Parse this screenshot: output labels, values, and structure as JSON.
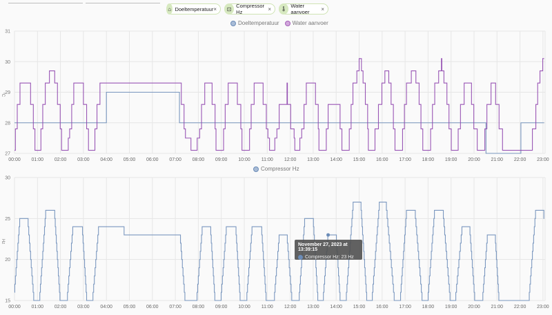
{
  "chips": [
    {
      "label": "Doeltemperatuur",
      "icon": "home-thermometer-icon",
      "glyph": "⌂"
    },
    {
      "label": "Compressor Hz",
      "icon": "compressor-icon",
      "glyph": "⊡"
    },
    {
      "label": "Water aanvoer",
      "icon": "thermometer-water-icon",
      "glyph": "🌡"
    }
  ],
  "chip_close": "×",
  "colors": {
    "doel": "#6b8cb8",
    "water": "#8e44ad",
    "compressor": "#6b8cb8",
    "chip_bg": "#d7e9c0",
    "grid": "#e4e4e4"
  },
  "tooltip": {
    "title": "November 27, 2023 at 13:39:15",
    "row": "Compressor Hz: 23 Hz"
  },
  "chart_data": [
    {
      "type": "line",
      "ylabel": "°C",
      "ylim": [
        27,
        31
      ],
      "yticks": [
        "27",
        "28",
        "29",
        "30",
        "31"
      ],
      "xlim_hours": [
        0,
        23.05
      ],
      "xticks": [
        "00:00",
        "01:00",
        "02:00",
        "03:00",
        "04:00",
        "05:00",
        "06:00",
        "07:00",
        "08:00",
        "09:00",
        "10:00",
        "11:00",
        "12:00",
        "13:00",
        "14:00",
        "15:00",
        "16:00",
        "17:00",
        "18:00",
        "19:00",
        "20:00",
        "21:00",
        "22:00",
        "23:00"
      ],
      "grid": true,
      "legend": "top-center",
      "series": [
        {
          "name": "Doeltemperatuur",
          "color": "#6b8cb8",
          "step": true,
          "points": [
            [
              0,
              28
            ],
            [
              4.0,
              29
            ],
            [
              7.18,
              28
            ],
            [
              20.52,
              27
            ],
            [
              22.04,
              28
            ],
            [
              23.05,
              28
            ]
          ]
        },
        {
          "name": "Water aanvoer",
          "color": "#8e44ad",
          "step": true,
          "points": [
            [
              0,
              27.1
            ],
            [
              0.04,
              27.8
            ],
            [
              0.12,
              28.6
            ],
            [
              0.24,
              29.3
            ],
            [
              0.7,
              28.6
            ],
            [
              0.82,
              27.8
            ],
            [
              0.89,
              27.1
            ],
            [
              1.15,
              27.8
            ],
            [
              1.23,
              28.6
            ],
            [
              1.34,
              29.3
            ],
            [
              1.52,
              29.7
            ],
            [
              1.75,
              29.3
            ],
            [
              1.87,
              28.6
            ],
            [
              1.99,
              27.8
            ],
            [
              2.05,
              27.1
            ],
            [
              2.34,
              27.5
            ],
            [
              2.4,
              27.8
            ],
            [
              2.49,
              28.6
            ],
            [
              2.58,
              29.3
            ],
            [
              3.0,
              28.6
            ],
            [
              3.14,
              27.8
            ],
            [
              3.22,
              27.1
            ],
            [
              3.5,
              27.8
            ],
            [
              3.59,
              28.6
            ],
            [
              3.72,
              29.3
            ],
            [
              7.26,
              28.6
            ],
            [
              7.38,
              27.8
            ],
            [
              7.44,
              27.5
            ],
            [
              7.68,
              27.1
            ],
            [
              7.95,
              27.5
            ],
            [
              8.06,
              27.8
            ],
            [
              8.14,
              28.6
            ],
            [
              8.28,
              29.3
            ],
            [
              8.6,
              28.6
            ],
            [
              8.73,
              27.8
            ],
            [
              8.77,
              27.1
            ],
            [
              9.1,
              27.8
            ],
            [
              9.17,
              28.6
            ],
            [
              9.3,
              29.3
            ],
            [
              9.7,
              28.6
            ],
            [
              9.85,
              27.8
            ],
            [
              9.9,
              27.1
            ],
            [
              10.23,
              27.8
            ],
            [
              10.3,
              28.6
            ],
            [
              10.43,
              29.3
            ],
            [
              10.82,
              28.6
            ],
            [
              10.96,
              27.8
            ],
            [
              11.03,
              27.5
            ],
            [
              11.1,
              27.1
            ],
            [
              11.33,
              27.5
            ],
            [
              11.42,
              27.8
            ],
            [
              11.52,
              28.6
            ],
            [
              11.86,
              29.3
            ],
            [
              11.88,
              28.6
            ],
            [
              12.02,
              27.8
            ],
            [
              12.17,
              27.5
            ],
            [
              12.2,
              27.1
            ],
            [
              12.42,
              27.5
            ],
            [
              12.5,
              27.8
            ],
            [
              12.6,
              28.6
            ],
            [
              12.7,
              29.3
            ],
            [
              13.1,
              28.6
            ],
            [
              13.22,
              27.8
            ],
            [
              13.25,
              27.1
            ],
            [
              13.57,
              27.8
            ],
            [
              13.65,
              28.6
            ],
            [
              14.17,
              27.8
            ],
            [
              14.25,
              27.1
            ],
            [
              14.57,
              27.8
            ],
            [
              14.65,
              28.6
            ],
            [
              14.73,
              29.3
            ],
            [
              14.9,
              29.7
            ],
            [
              15.0,
              30.1
            ],
            [
              15.1,
              29.7
            ],
            [
              15.17,
              29.3
            ],
            [
              15.27,
              28.6
            ],
            [
              15.37,
              27.8
            ],
            [
              15.4,
              27.1
            ],
            [
              15.69,
              27.8
            ],
            [
              15.84,
              28.6
            ],
            [
              15.99,
              29.3
            ],
            [
              16.12,
              29.7
            ],
            [
              16.29,
              29.3
            ],
            [
              16.39,
              28.6
            ],
            [
              16.49,
              27.8
            ],
            [
              16.56,
              27.1
            ],
            [
              16.89,
              27.8
            ],
            [
              16.97,
              28.6
            ],
            [
              17.06,
              29.3
            ],
            [
              17.27,
              29.7
            ],
            [
              17.47,
              29.3
            ],
            [
              17.61,
              28.6
            ],
            [
              17.69,
              27.8
            ],
            [
              17.77,
              27.1
            ],
            [
              18.11,
              27.8
            ],
            [
              18.19,
              28.6
            ],
            [
              18.29,
              29.3
            ],
            [
              18.46,
              29.7
            ],
            [
              18.58,
              30.1
            ],
            [
              18.6,
              29.7
            ],
            [
              18.69,
              29.3
            ],
            [
              18.82,
              28.6
            ],
            [
              18.91,
              27.8
            ],
            [
              19.01,
              27.1
            ],
            [
              19.31,
              27.8
            ],
            [
              19.41,
              28.6
            ],
            [
              19.57,
              29.3
            ],
            [
              19.89,
              28.6
            ],
            [
              19.99,
              27.8
            ],
            [
              20.14,
              27.1
            ],
            [
              20.47,
              27.8
            ],
            [
              20.56,
              28.6
            ],
            [
              20.74,
              29.3
            ],
            [
              20.94,
              28.6
            ],
            [
              21.09,
              27.8
            ],
            [
              21.24,
              27.1
            ],
            [
              22.54,
              27.8
            ],
            [
              22.69,
              28.6
            ],
            [
              22.77,
              29.3
            ],
            [
              22.87,
              29.7
            ],
            [
              22.99,
              30.1
            ],
            [
              23.05,
              30.1
            ]
          ]
        }
      ]
    },
    {
      "type": "line",
      "ylabel": "Hz",
      "ylim": [
        15,
        30
      ],
      "yticks": [
        "15",
        "20",
        "25",
        "30"
      ],
      "xlim_hours": [
        0,
        23.05
      ],
      "xticks": [
        "00:00",
        "01:00",
        "02:00",
        "03:00",
        "04:00",
        "05:00",
        "06:00",
        "07:00",
        "08:00",
        "09:00",
        "10:00",
        "11:00",
        "12:00",
        "13:00",
        "14:00",
        "15:00",
        "16:00",
        "17:00",
        "18:00",
        "19:00",
        "20:00",
        "21:00",
        "22:00",
        "23:00"
      ],
      "grid": true,
      "legend": "top-center",
      "series": [
        {
          "name": "Compressor Hz",
          "color": "#6b8cb8",
          "step": true,
          "step_size": 1,
          "points": [
            [
              0,
              16
            ],
            [
              0.24,
              25
            ],
            [
              0.58,
              25
            ],
            [
              0.85,
              15
            ],
            [
              1.09,
              15
            ],
            [
              1.37,
              26
            ],
            [
              1.74,
              26
            ],
            [
              1.99,
              15
            ],
            [
              2.29,
              15
            ],
            [
              2.55,
              24
            ],
            [
              2.95,
              24
            ],
            [
              3.15,
              15
            ],
            [
              3.4,
              15
            ],
            [
              3.67,
              24
            ],
            [
              4.77,
              24
            ],
            [
              4.77,
              23
            ],
            [
              7.21,
              23
            ],
            [
              7.43,
              15
            ],
            [
              7.93,
              15
            ],
            [
              8.18,
              24
            ],
            [
              8.53,
              24
            ],
            [
              8.73,
              15
            ],
            [
              8.98,
              15
            ],
            [
              9.23,
              24
            ],
            [
              9.63,
              24
            ],
            [
              9.83,
              15
            ],
            [
              10.1,
              15
            ],
            [
              10.35,
              24
            ],
            [
              10.75,
              24
            ],
            [
              10.96,
              15
            ],
            [
              11.3,
              15
            ],
            [
              11.53,
              23
            ],
            [
              11.86,
              23
            ],
            [
              12.08,
              15
            ],
            [
              12.38,
              15
            ],
            [
              12.64,
              25
            ],
            [
              13.0,
              25
            ],
            [
              13.21,
              15
            ],
            [
              13.43,
              15
            ],
            [
              13.65,
              23
            ],
            [
              14.0,
              23
            ],
            [
              14.18,
              15
            ],
            [
              14.43,
              15
            ],
            [
              14.75,
              27
            ],
            [
              15.07,
              27
            ],
            [
              15.34,
              15
            ],
            [
              15.56,
              15
            ],
            [
              15.89,
              27
            ],
            [
              16.17,
              27
            ],
            [
              16.54,
              15
            ],
            [
              16.79,
              15
            ],
            [
              17.07,
              26
            ],
            [
              17.43,
              26
            ],
            [
              17.75,
              15
            ],
            [
              17.99,
              15
            ],
            [
              18.29,
              26
            ],
            [
              18.65,
              26
            ],
            [
              18.97,
              15
            ],
            [
              19.19,
              15
            ],
            [
              19.49,
              24
            ],
            [
              19.81,
              24
            ],
            [
              20.04,
              15
            ],
            [
              20.37,
              15
            ],
            [
              20.59,
              23
            ],
            [
              20.92,
              23
            ],
            [
              21.09,
              15
            ],
            [
              22.39,
              15
            ],
            [
              22.69,
              26
            ],
            [
              23.04,
              26
            ],
            [
              23.04,
              25
            ],
            [
              23.05,
              25
            ]
          ]
        }
      ],
      "hover_point": [
        13.65,
        23
      ]
    }
  ]
}
